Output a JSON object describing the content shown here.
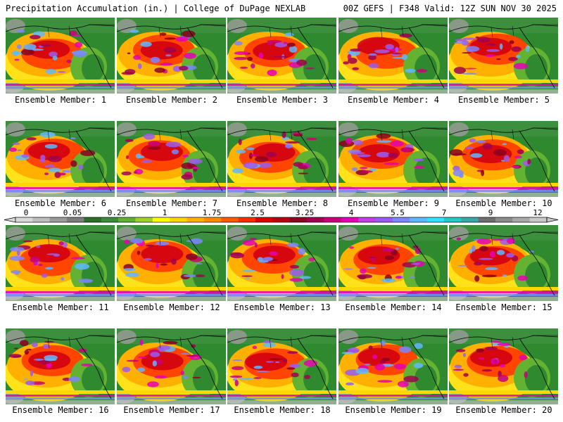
{
  "header": {
    "title_left": "Precipitation Accumulation (in.) | College of DuPage NEXLAB",
    "title_right": "00Z GEFS | F348 Valid: 12Z SUN NOV 30 2025"
  },
  "members": [
    {
      "label": "Ensemble Member: 1"
    },
    {
      "label": "Ensemble Member: 2"
    },
    {
      "label": "Ensemble Member: 3"
    },
    {
      "label": "Ensemble Member: 4"
    },
    {
      "label": "Ensemble Member: 5"
    },
    {
      "label": "Ensemble Member: 6"
    },
    {
      "label": "Ensemble Member: 7"
    },
    {
      "label": "Ensemble Member: 8"
    },
    {
      "label": "Ensemble Member: 9"
    },
    {
      "label": "Ensemble Member: 10"
    },
    {
      "label": "Ensemble Member: 11"
    },
    {
      "label": "Ensemble Member: 12"
    },
    {
      "label": "Ensemble Member: 13"
    },
    {
      "label": "Ensemble Member: 14"
    },
    {
      "label": "Ensemble Member: 15"
    },
    {
      "label": "Ensemble Member: 16"
    },
    {
      "label": "Ensemble Member: 17"
    },
    {
      "label": "Ensemble Member: 18"
    },
    {
      "label": "Ensemble Member: 19"
    },
    {
      "label": "Ensemble Member: 20"
    }
  ],
  "legend": {
    "tick_labels": [
      "0",
      "0.05",
      "0.25",
      "1",
      "1.75",
      "2.5",
      "3.25",
      "4",
      "5.5",
      "7",
      "9",
      "12"
    ],
    "colors": [
      "#d9d9d9",
      "#bdbdbd",
      "#9a9a9a",
      "#7d7d7d",
      "#2a6e2a",
      "#3a8c3a",
      "#5fb034",
      "#9ed12e",
      "#ffff00",
      "#ffd700",
      "#ffb000",
      "#ff8c00",
      "#ff5a00",
      "#ff2a00",
      "#e00000",
      "#b80010",
      "#8a0020",
      "#a00050",
      "#c8007a",
      "#e600b4",
      "#c040e0",
      "#9a5cf0",
      "#7b86ff",
      "#5fb8ff",
      "#33e0ff",
      "#26c8c8",
      "#3aa8a8",
      "#6e6e6e",
      "#8c8c8c",
      "#a8a8a8",
      "#c8c8c8"
    ]
  }
}
